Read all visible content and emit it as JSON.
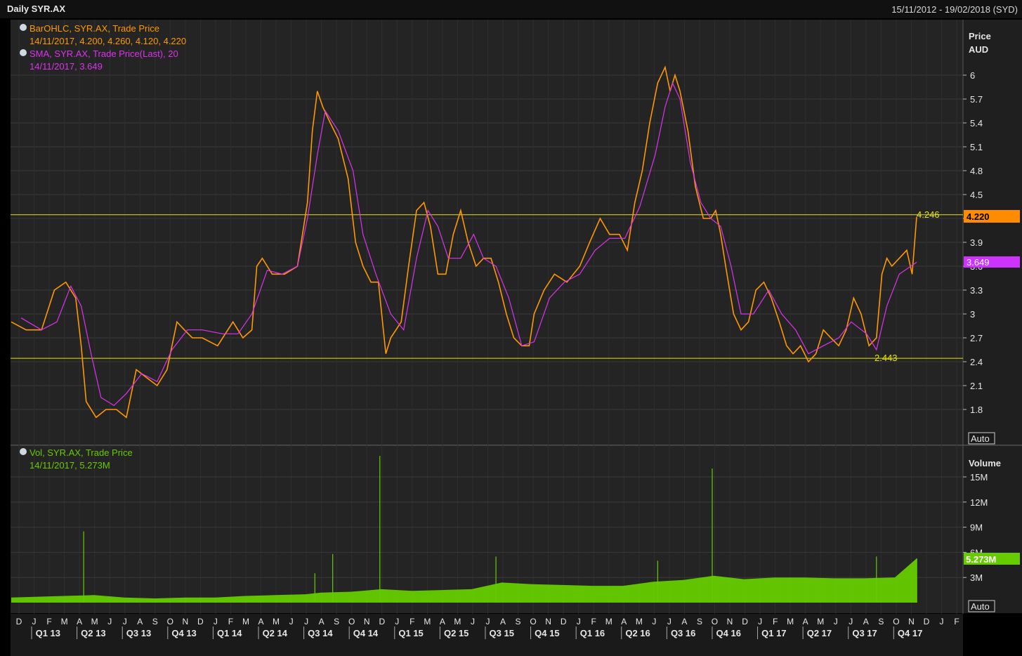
{
  "header": {
    "title": "Daily SYR.AX",
    "date_range": "15/11/2012 - 19/02/2018 (SYD)"
  },
  "colors": {
    "background": "#242424",
    "grid": "#3a3a3a",
    "price_line": "#ff9900",
    "sma_line": "#dd33ee",
    "volume_bar": "#66cc00",
    "reference_line": "#e6e600",
    "price_badge": "#ff8c00",
    "sma_badge": "#cc33ff",
    "volume_badge": "#66cc00"
  },
  "legend": {
    "price_series": "BarOHLC, SYR.AX, Trade Price",
    "price_values": "14/11/2017, 4.200, 4.260, 4.120, 4.220",
    "sma_series": "SMA, SYR.AX, Trade Price(Last),  20",
    "sma_values": "14/11/2017, 3.649",
    "vol_series": "Vol, SYR.AX, Trade Price",
    "vol_values": "14/11/2017, 5.273M"
  },
  "badges": {
    "last_price": "4.220",
    "last_sma": "3.649",
    "last_volume": "5.273M",
    "auto_top": "Auto",
    "auto_bottom": "Auto"
  },
  "chart_data": [
    {
      "type": "line",
      "panel": "price",
      "ylabel": "Price",
      "unit_label": "AUD",
      "ylim": [
        1.4,
        6.5
      ],
      "yticks": [
        1.8,
        2.1,
        2.4,
        2.7,
        3,
        3.3,
        3.6,
        3.9,
        4.2,
        4.5,
        4.8,
        5.1,
        5.4,
        5.7,
        6
      ],
      "grid": true,
      "x_start": "2012-11-15",
      "x_end": "2018-02-19",
      "series": [
        {
          "name": "BarOHLC, SYR.AX, Trade Price",
          "x": [
            "2012-11-15",
            "2012-12-15",
            "2013-01-15",
            "2013-02-10",
            "2013-03-05",
            "2013-03-25",
            "2013-04-05",
            "2013-04-15",
            "2013-05-05",
            "2013-05-25",
            "2013-06-15",
            "2013-07-05",
            "2013-07-25",
            "2013-08-15",
            "2013-09-05",
            "2013-09-25",
            "2013-10-15",
            "2013-10-30",
            "2013-11-15",
            "2013-12-05",
            "2014-01-05",
            "2014-02-05",
            "2014-02-25",
            "2014-03-15",
            "2014-03-25",
            "2014-04-05",
            "2014-04-25",
            "2014-05-20",
            "2014-06-15",
            "2014-07-05",
            "2014-07-15",
            "2014-07-25",
            "2014-08-05",
            "2014-08-20",
            "2014-09-05",
            "2014-09-25",
            "2014-10-10",
            "2014-10-25",
            "2014-11-10",
            "2014-11-25",
            "2014-12-10",
            "2014-12-20",
            "2015-01-10",
            "2015-01-25",
            "2015-02-10",
            "2015-02-25",
            "2015-03-10",
            "2015-03-25",
            "2015-04-10",
            "2015-04-25",
            "2015-05-10",
            "2015-05-25",
            "2015-06-10",
            "2015-06-25",
            "2015-07-10",
            "2015-07-25",
            "2015-08-10",
            "2015-08-25",
            "2015-09-10",
            "2015-09-25",
            "2015-10-05",
            "2015-10-25",
            "2015-11-15",
            "2015-12-10",
            "2016-01-05",
            "2016-01-25",
            "2016-02-15",
            "2016-03-05",
            "2016-03-25",
            "2016-04-10",
            "2016-04-25",
            "2016-05-10",
            "2016-05-25",
            "2016-06-10",
            "2016-06-25",
            "2016-07-05",
            "2016-07-15",
            "2016-07-25",
            "2016-08-10",
            "2016-08-25",
            "2016-09-10",
            "2016-09-25",
            "2016-10-05",
            "2016-10-15",
            "2016-10-25",
            "2016-11-10",
            "2016-11-25",
            "2016-12-10",
            "2016-12-25",
            "2017-01-10",
            "2017-01-25",
            "2017-02-10",
            "2017-02-25",
            "2017-03-10",
            "2017-03-25",
            "2017-04-10",
            "2017-04-25",
            "2017-05-10",
            "2017-05-25",
            "2017-06-10",
            "2017-06-25",
            "2017-07-10",
            "2017-07-25",
            "2017-08-10",
            "2017-08-25",
            "2017-09-05",
            "2017-09-15",
            "2017-09-25",
            "2017-10-10",
            "2017-10-25",
            "2017-11-05",
            "2017-11-14"
          ],
          "values": [
            2.9,
            2.8,
            2.8,
            3.3,
            3.4,
            3.2,
            2.6,
            1.9,
            1.7,
            1.8,
            1.8,
            1.7,
            2.3,
            2.2,
            2.1,
            2.3,
            2.9,
            2.8,
            2.7,
            2.7,
            2.6,
            2.9,
            2.7,
            2.8,
            3.6,
            3.7,
            3.5,
            3.5,
            3.6,
            4.4,
            5.3,
            5.8,
            5.6,
            5.4,
            5.2,
            4.7,
            3.9,
            3.6,
            3.4,
            3.4,
            2.5,
            2.7,
            2.9,
            3.6,
            4.3,
            4.4,
            4.1,
            3.5,
            3.5,
            4.0,
            4.3,
            3.9,
            3.6,
            3.7,
            3.7,
            3.4,
            3.0,
            2.7,
            2.6,
            2.6,
            3.0,
            3.3,
            3.5,
            3.4,
            3.6,
            3.9,
            4.2,
            4.0,
            4.0,
            3.8,
            4.4,
            4.8,
            5.4,
            5.9,
            6.1,
            5.8,
            6.0,
            5.8,
            5.3,
            4.6,
            4.2,
            4.2,
            4.3,
            4.0,
            3.6,
            3.0,
            2.8,
            2.9,
            3.3,
            3.4,
            3.2,
            2.9,
            2.6,
            2.5,
            2.6,
            2.4,
            2.5,
            2.8,
            2.7,
            2.6,
            2.8,
            3.2,
            3.0,
            2.6,
            2.7,
            3.5,
            3.7,
            3.6,
            3.7,
            3.8,
            3.5,
            4.22
          ]
        },
        {
          "name": "SMA, SYR.AX, Trade Price(Last),  20",
          "x": [
            "2012-12-05",
            "2013-01-15",
            "2013-02-15",
            "2013-03-15",
            "2013-04-05",
            "2013-04-25",
            "2013-05-15",
            "2013-06-10",
            "2013-07-05",
            "2013-08-05",
            "2013-09-05",
            "2013-10-05",
            "2013-11-05",
            "2013-12-05",
            "2014-01-15",
            "2014-02-15",
            "2014-03-15",
            "2014-04-15",
            "2014-05-15",
            "2014-06-15",
            "2014-07-05",
            "2014-07-25",
            "2014-08-10",
            "2014-09-05",
            "2014-10-05",
            "2014-10-25",
            "2014-11-20",
            "2014-12-20",
            "2015-01-15",
            "2015-02-10",
            "2015-03-05",
            "2015-03-25",
            "2015-04-15",
            "2015-05-10",
            "2015-06-05",
            "2015-06-25",
            "2015-07-20",
            "2015-08-15",
            "2015-09-10",
            "2015-10-05",
            "2015-11-05",
            "2015-12-05",
            "2016-01-05",
            "2016-02-05",
            "2016-03-05",
            "2016-04-05",
            "2016-05-05",
            "2016-06-05",
            "2016-06-25",
            "2016-07-10",
            "2016-07-25",
            "2016-08-15",
            "2016-09-05",
            "2016-09-25",
            "2016-10-15",
            "2016-11-05",
            "2016-11-25",
            "2016-12-20",
            "2017-01-20",
            "2017-02-15",
            "2017-03-15",
            "2017-04-10",
            "2017-05-10",
            "2017-06-10",
            "2017-07-05",
            "2017-08-05",
            "2017-08-25",
            "2017-09-15",
            "2017-10-10",
            "2017-11-14"
          ],
          "values": [
            2.95,
            2.8,
            2.9,
            3.35,
            3.1,
            2.5,
            1.95,
            1.85,
            2.0,
            2.25,
            2.15,
            2.55,
            2.8,
            2.8,
            2.75,
            2.75,
            3.0,
            3.55,
            3.5,
            3.6,
            4.2,
            5.0,
            5.55,
            5.3,
            4.8,
            4.0,
            3.5,
            3.0,
            2.8,
            3.7,
            4.3,
            4.1,
            3.7,
            3.7,
            4.0,
            3.7,
            3.6,
            3.2,
            2.6,
            2.65,
            3.2,
            3.4,
            3.5,
            3.8,
            3.95,
            3.95,
            4.35,
            5.0,
            5.6,
            5.9,
            5.7,
            4.9,
            4.4,
            4.2,
            4.1,
            3.6,
            3.0,
            3.0,
            3.3,
            3.0,
            2.8,
            2.5,
            2.6,
            2.7,
            2.9,
            2.75,
            2.55,
            3.1,
            3.5,
            3.649
          ]
        }
      ],
      "reference_lines": [
        {
          "value": 4.246,
          "label": "4.246"
        },
        {
          "value": 2.443,
          "label": "2.443"
        }
      ]
    },
    {
      "type": "bar",
      "panel": "volume",
      "ylabel": "Volume",
      "ylim": [
        0,
        18
      ],
      "yticks": [
        3,
        6,
        9,
        12,
        15
      ],
      "ytick_labels": [
        "3M",
        "6M",
        "9M",
        "12M",
        "15M"
      ],
      "grid": true,
      "series": [
        {
          "name": "Vol, SYR.AX, Trade Price",
          "x": [
            "2012-11-15",
            "2013-03-01",
            "2013-05-01",
            "2013-07-01",
            "2013-09-01",
            "2013-11-01",
            "2014-01-01",
            "2014-03-01",
            "2014-05-01",
            "2014-07-01",
            "2014-08-01",
            "2014-10-01",
            "2014-12-01",
            "2015-02-01",
            "2015-04-01",
            "2015-06-01",
            "2015-08-01",
            "2015-10-01",
            "2015-12-01",
            "2016-02-01",
            "2016-04-01",
            "2016-06-01",
            "2016-08-01",
            "2016-10-01",
            "2016-12-01",
            "2017-02-01",
            "2017-04-01",
            "2017-06-01",
            "2017-08-01",
            "2017-10-01",
            "2017-11-14"
          ],
          "values": [
            0.6,
            0.8,
            0.9,
            0.6,
            0.5,
            0.6,
            0.6,
            0.8,
            0.9,
            1.0,
            1.2,
            1.3,
            1.6,
            1.4,
            1.5,
            1.6,
            2.4,
            2.2,
            2.1,
            2.0,
            2.0,
            2.5,
            2.7,
            3.2,
            2.8,
            3.0,
            3.0,
            2.9,
            2.9,
            3.0,
            5.273
          ],
          "spikes": [
            {
              "x": "2013-04-10",
              "value": 8.5
            },
            {
              "x": "2014-07-20",
              "value": 3.5
            },
            {
              "x": "2014-08-25",
              "value": 5.8
            },
            {
              "x": "2014-11-28",
              "value": 17.5
            },
            {
              "x": "2015-07-20",
              "value": 5.5
            },
            {
              "x": "2016-06-10",
              "value": 5.0
            },
            {
              "x": "2016-09-28",
              "value": 16.0
            },
            {
              "x": "2017-08-25",
              "value": 5.5
            }
          ]
        }
      ]
    }
  ],
  "x_axis": {
    "months": [
      "D",
      "J",
      "F",
      "M",
      "A",
      "M",
      "J",
      "J",
      "A",
      "S",
      "O",
      "N",
      "D",
      "J",
      "F",
      "M",
      "A",
      "M",
      "J",
      "J",
      "A",
      "S",
      "O",
      "N",
      "D",
      "J",
      "F",
      "M",
      "A",
      "M",
      "J",
      "J",
      "A",
      "S",
      "O",
      "N",
      "D",
      "J",
      "F",
      "M",
      "A",
      "M",
      "J",
      "J",
      "A",
      "S",
      "O",
      "N",
      "D",
      "J",
      "F",
      "M",
      "A",
      "M",
      "J",
      "J",
      "A",
      "S",
      "O",
      "N",
      "D",
      "J",
      "F"
    ],
    "quarters": [
      "Q1 13",
      "Q2 13",
      "Q3 13",
      "Q4 13",
      "Q1 14",
      "Q2 14",
      "Q3 14",
      "Q4 14",
      "Q1 15",
      "Q2 15",
      "Q3 15",
      "Q4 15",
      "Q1 16",
      "Q2 16",
      "Q3 16",
      "Q4 16",
      "Q1 17",
      "Q2 17",
      "Q3 17",
      "Q4 17"
    ]
  }
}
